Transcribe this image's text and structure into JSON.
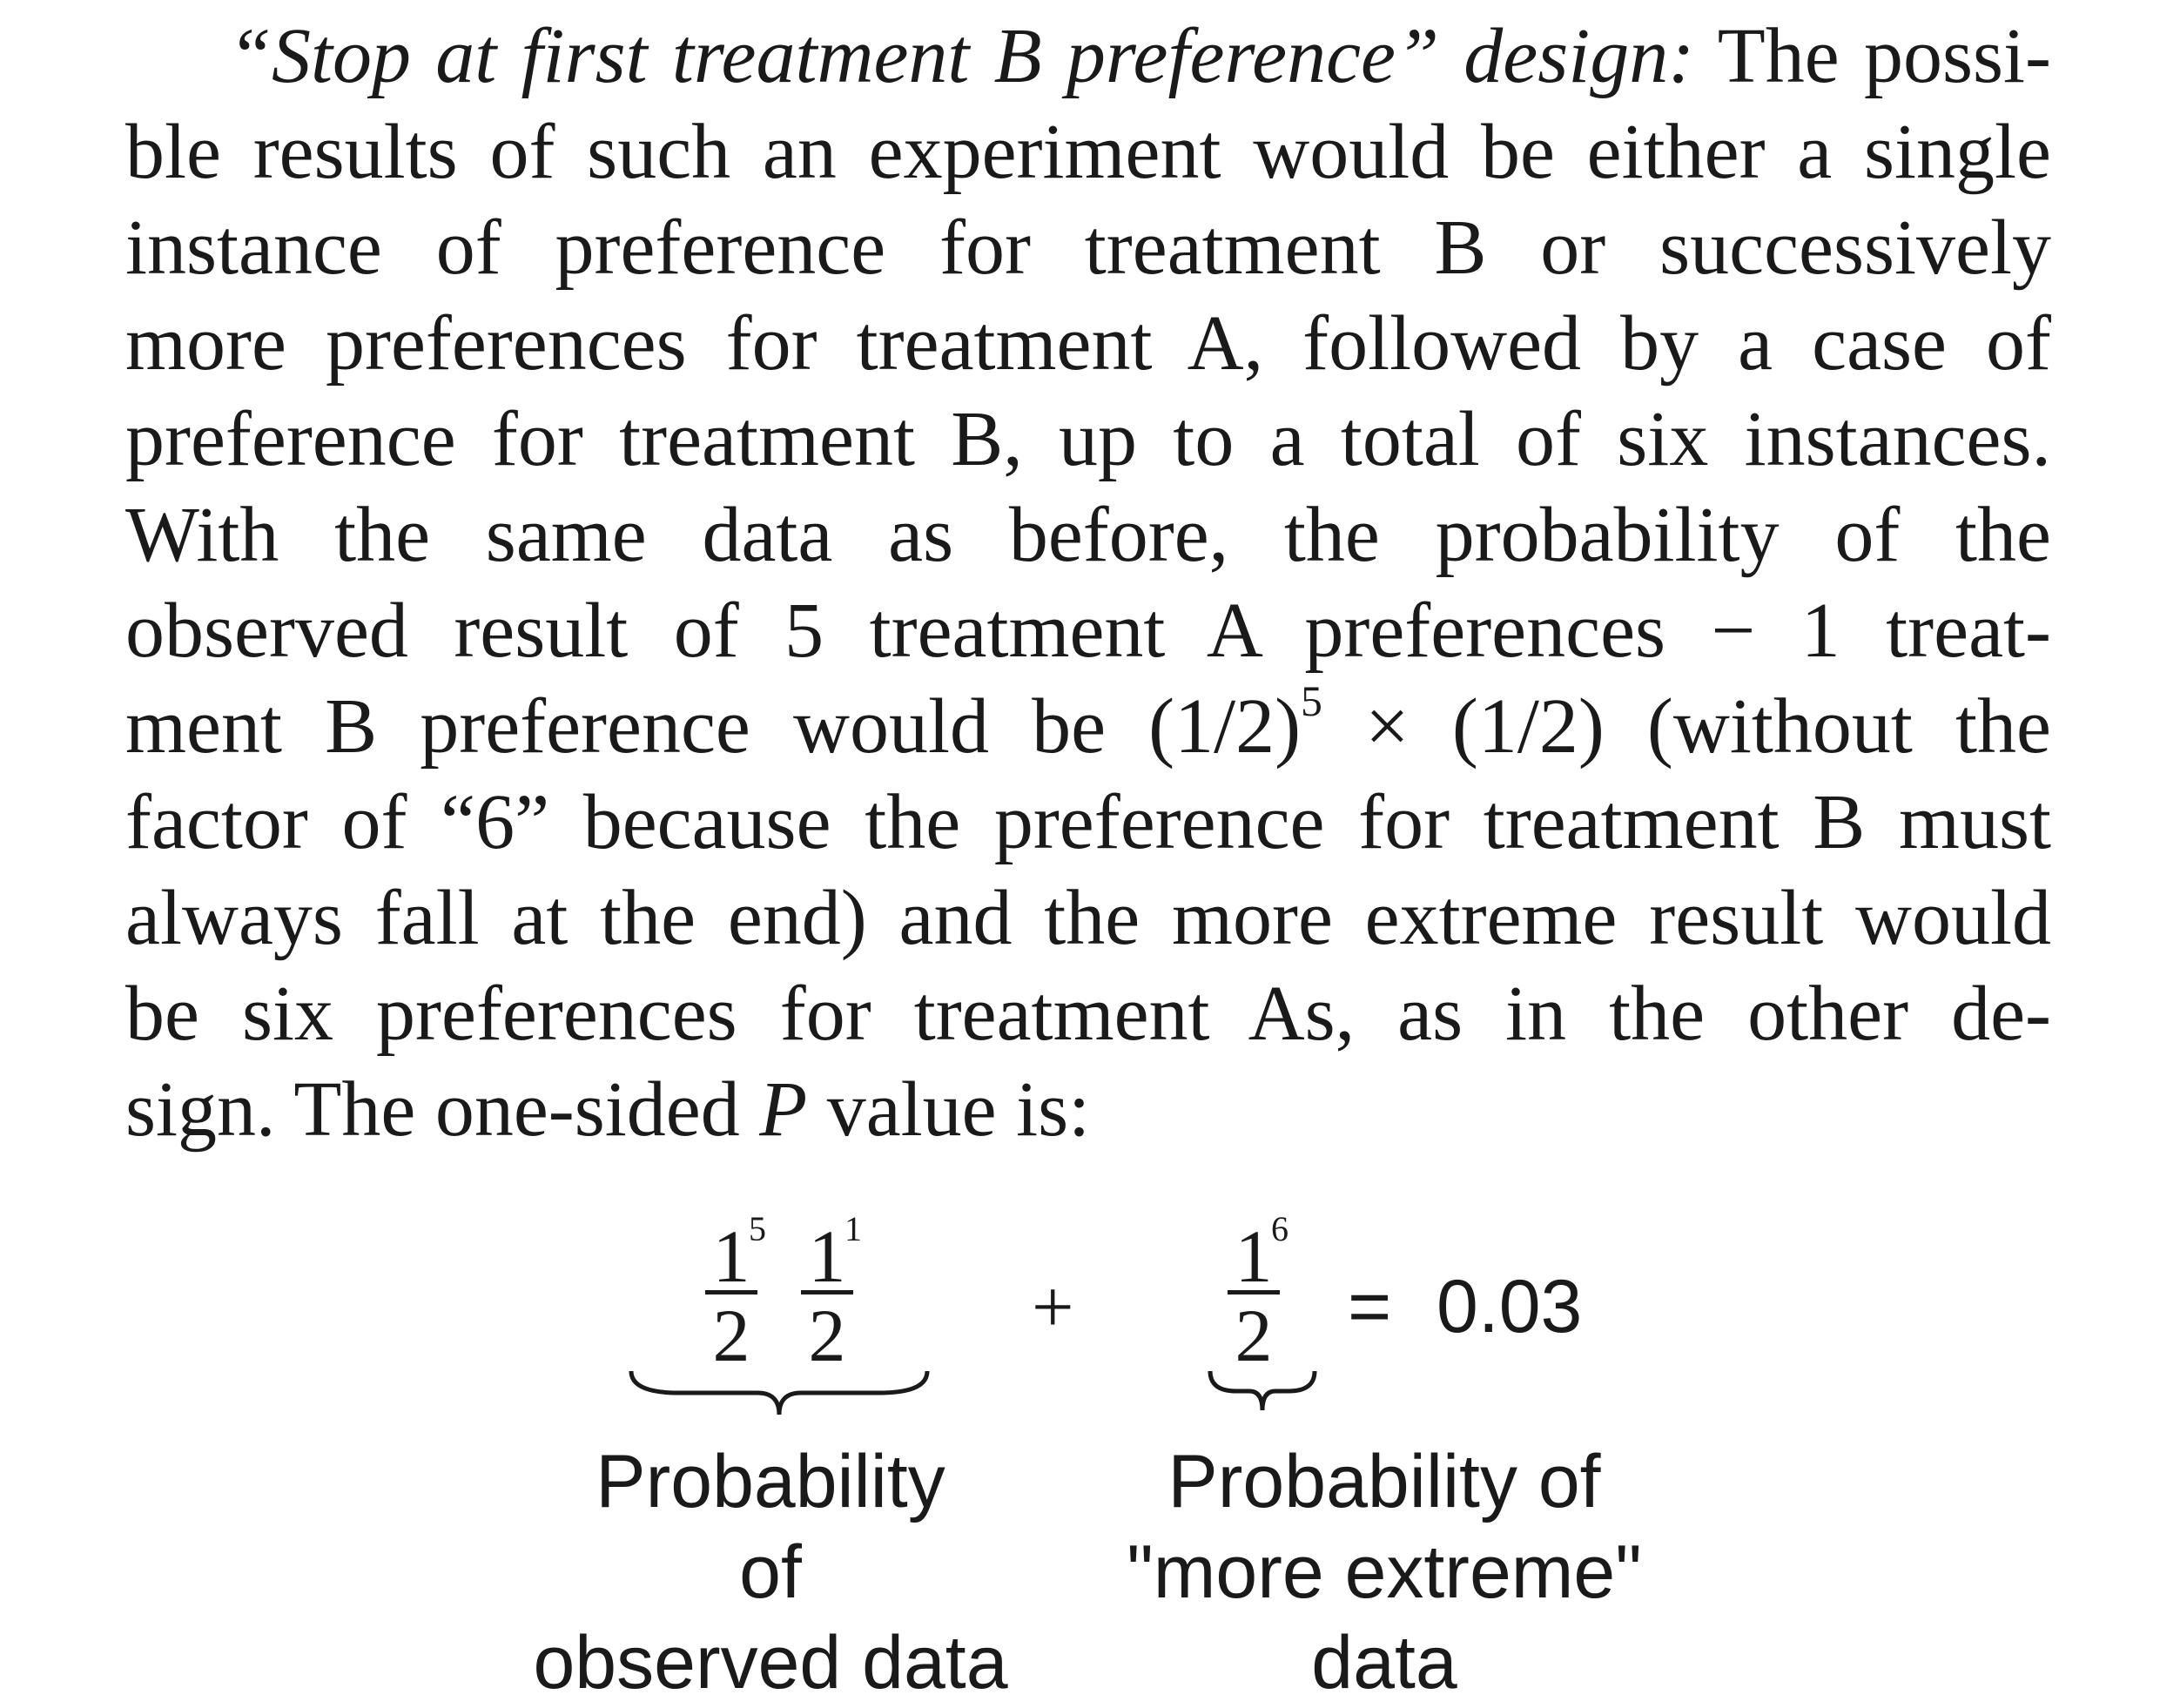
{
  "paragraph": {
    "lead": "“Stop at first treatment B preference” design:",
    "lines": [
      " The possi-",
      "ble results of such an experiment would be either a single",
      "instance of preference for treatment B or successively",
      "more preferences for treatment A, followed by a case of",
      "preference for treatment B, up to a total of six instances.",
      "With the same data as before, the probability of the",
      "observed result of 5 treatment A preferences − 1 treat-"
    ],
    "line8_pre": "ment B preference would be (1/2)",
    "line8_sup": "5",
    "line8_post": " × (1/2) (without the",
    "lines_after": [
      "factor of “6” because the preference for treatment B must",
      "always fall at the end) and the more extreme result would",
      "be six preferences for treatment As, as in the other de-"
    ],
    "last_pre": "sign. The one-sided ",
    "last_italic": "P",
    "last_post": " value is:"
  },
  "formula": {
    "term1": {
      "num_a": "1",
      "exp_a": "5",
      "den_a": "2",
      "num_b": "1",
      "exp_b": "1",
      "den_b": "2"
    },
    "plus": "+",
    "term2": {
      "num": "1",
      "exp": "6",
      "den": "2"
    },
    "equals": "=",
    "result": "0.03",
    "label1": [
      "Probability",
      "of",
      "observed data"
    ],
    "label2": [
      "Probability of",
      "\"more extreme\"",
      "data"
    ]
  }
}
